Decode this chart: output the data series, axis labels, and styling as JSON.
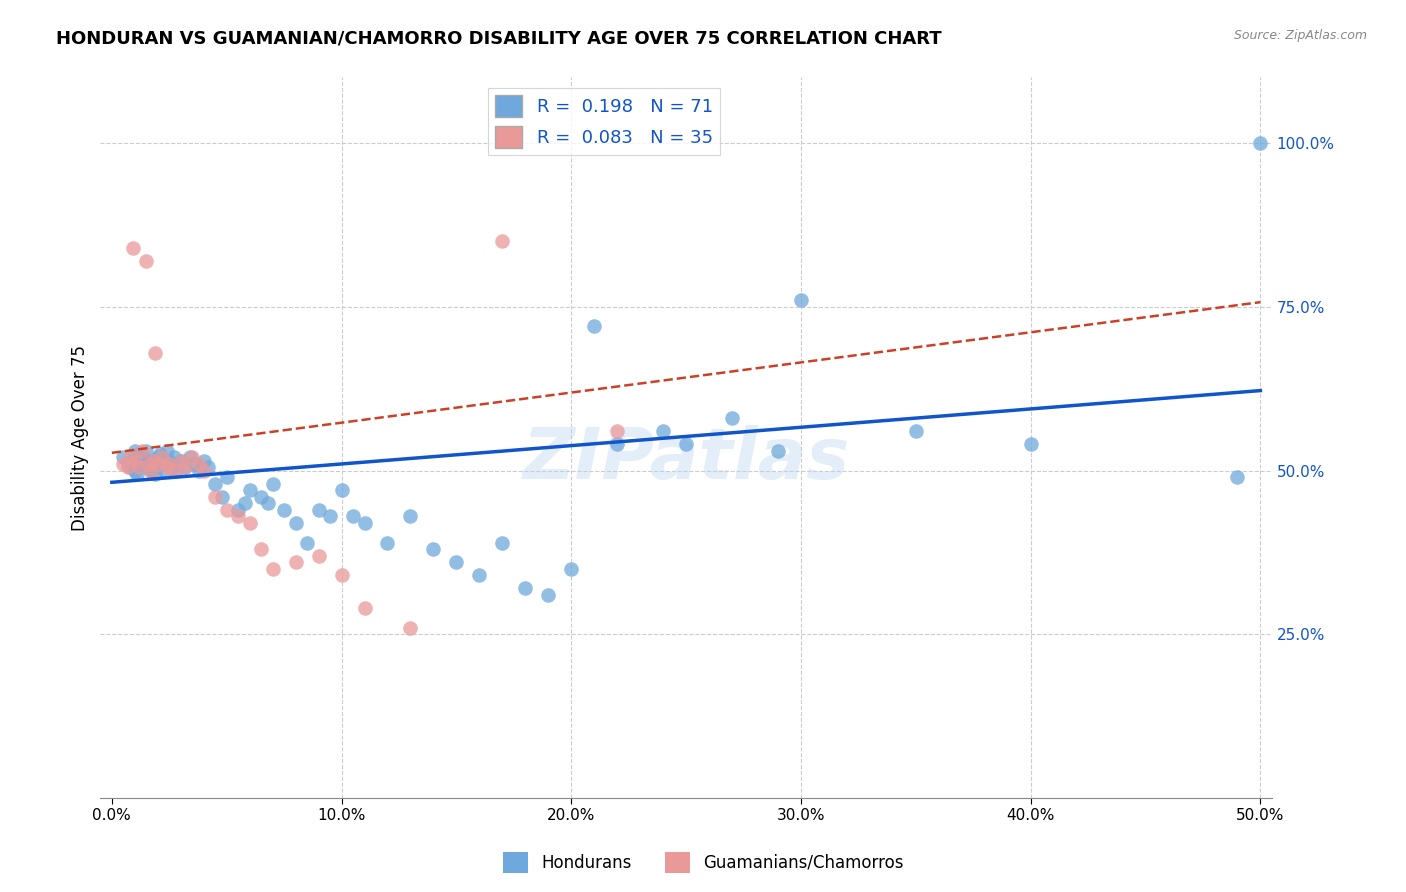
{
  "title": "HONDURAN VS GUAMANIAN/CHAMORRO DISABILITY AGE OVER 75 CORRELATION CHART",
  "source": "Source: ZipAtlas.com",
  "xlabel_ticks": [
    "0.0%",
    "10.0%",
    "20.0%",
    "30.0%",
    "40.0%",
    "50.0%"
  ],
  "xlabel_vals": [
    0.0,
    0.1,
    0.2,
    0.3,
    0.4,
    0.5
  ],
  "ylabel": "Disability Age Over 75",
  "ylabel_ticks_right": [
    "100.0%",
    "75.0%",
    "50.0%",
    "25.0%"
  ],
  "ylabel_vals_right": [
    1.0,
    0.75,
    0.5,
    0.25
  ],
  "xlim": [
    -0.005,
    0.505
  ],
  "ylim": [
    0.0,
    1.1
  ],
  "legend_blue_R": "0.198",
  "legend_blue_N": "71",
  "legend_pink_R": "0.083",
  "legend_pink_N": "35",
  "legend_label_blue": "Hondurans",
  "legend_label_pink": "Guamanians/Chamorros",
  "blue_color": "#6fa8dc",
  "pink_color": "#ea9999",
  "trendline_blue_color": "#1155cc",
  "trendline_pink_color": "#cc4125",
  "watermark": "ZIPatlas",
  "blue_trendline_x": [
    0.0,
    0.5
  ],
  "blue_trendline_y": [
    0.482,
    0.622
  ],
  "pink_trendline_x": [
    0.0,
    0.5
  ],
  "pink_trendline_y": [
    0.527,
    0.757
  ],
  "blue_points_x": [
    0.005,
    0.007,
    0.008,
    0.009,
    0.01,
    0.01,
    0.011,
    0.012,
    0.013,
    0.013,
    0.014,
    0.015,
    0.015,
    0.016,
    0.017,
    0.018,
    0.019,
    0.02,
    0.02,
    0.021,
    0.022,
    0.023,
    0.024,
    0.025,
    0.026,
    0.027,
    0.028,
    0.03,
    0.032,
    0.034,
    0.036,
    0.038,
    0.04,
    0.042,
    0.045,
    0.048,
    0.05,
    0.055,
    0.058,
    0.06,
    0.065,
    0.068,
    0.07,
    0.075,
    0.08,
    0.085,
    0.09,
    0.095,
    0.1,
    0.105,
    0.11,
    0.12,
    0.13,
    0.14,
    0.15,
    0.16,
    0.17,
    0.18,
    0.19,
    0.2,
    0.21,
    0.22,
    0.24,
    0.25,
    0.27,
    0.29,
    0.3,
    0.35,
    0.4,
    0.49,
    0.5
  ],
  "blue_points_y": [
    0.52,
    0.51,
    0.505,
    0.515,
    0.5,
    0.53,
    0.495,
    0.525,
    0.51,
    0.52,
    0.515,
    0.505,
    0.53,
    0.515,
    0.5,
    0.51,
    0.495,
    0.52,
    0.515,
    0.525,
    0.51,
    0.5,
    0.53,
    0.515,
    0.505,
    0.52,
    0.5,
    0.515,
    0.505,
    0.52,
    0.51,
    0.5,
    0.515,
    0.505,
    0.48,
    0.46,
    0.49,
    0.44,
    0.45,
    0.47,
    0.46,
    0.45,
    0.48,
    0.44,
    0.42,
    0.39,
    0.44,
    0.43,
    0.47,
    0.43,
    0.42,
    0.39,
    0.43,
    0.38,
    0.36,
    0.34,
    0.39,
    0.32,
    0.31,
    0.35,
    0.72,
    0.54,
    0.56,
    0.54,
    0.58,
    0.53,
    0.76,
    0.56,
    0.54,
    0.49,
    1.0
  ],
  "pink_points_x": [
    0.005,
    0.007,
    0.008,
    0.009,
    0.01,
    0.012,
    0.013,
    0.015,
    0.016,
    0.017,
    0.018,
    0.019,
    0.02,
    0.022,
    0.024,
    0.025,
    0.027,
    0.03,
    0.032,
    0.035,
    0.038,
    0.04,
    0.045,
    0.05,
    0.055,
    0.06,
    0.065,
    0.07,
    0.08,
    0.09,
    0.1,
    0.11,
    0.13,
    0.17,
    0.22
  ],
  "pink_points_y": [
    0.51,
    0.505,
    0.52,
    0.84,
    0.515,
    0.505,
    0.53,
    0.82,
    0.51,
    0.5,
    0.515,
    0.68,
    0.51,
    0.52,
    0.505,
    0.51,
    0.5,
    0.515,
    0.505,
    0.52,
    0.51,
    0.5,
    0.46,
    0.44,
    0.43,
    0.42,
    0.38,
    0.35,
    0.36,
    0.37,
    0.34,
    0.29,
    0.26,
    0.85,
    0.56
  ]
}
